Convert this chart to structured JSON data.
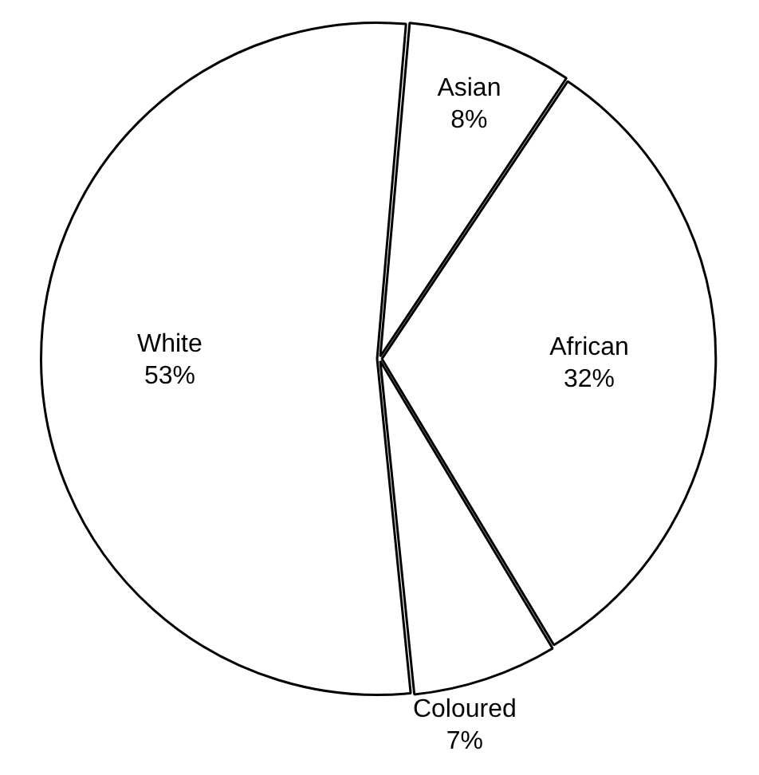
{
  "chart_data": {
    "type": "pie",
    "categories": [
      "Asian",
      "African",
      "Coloured",
      "White"
    ],
    "values": [
      8,
      32,
      7,
      53
    ],
    "colors": [
      "#ffffff",
      "#ffffff",
      "#ffffff",
      "#ffffff"
    ],
    "value_labels": [
      "8%",
      "32%",
      "7%",
      "53%"
    ],
    "legend": false
  }
}
